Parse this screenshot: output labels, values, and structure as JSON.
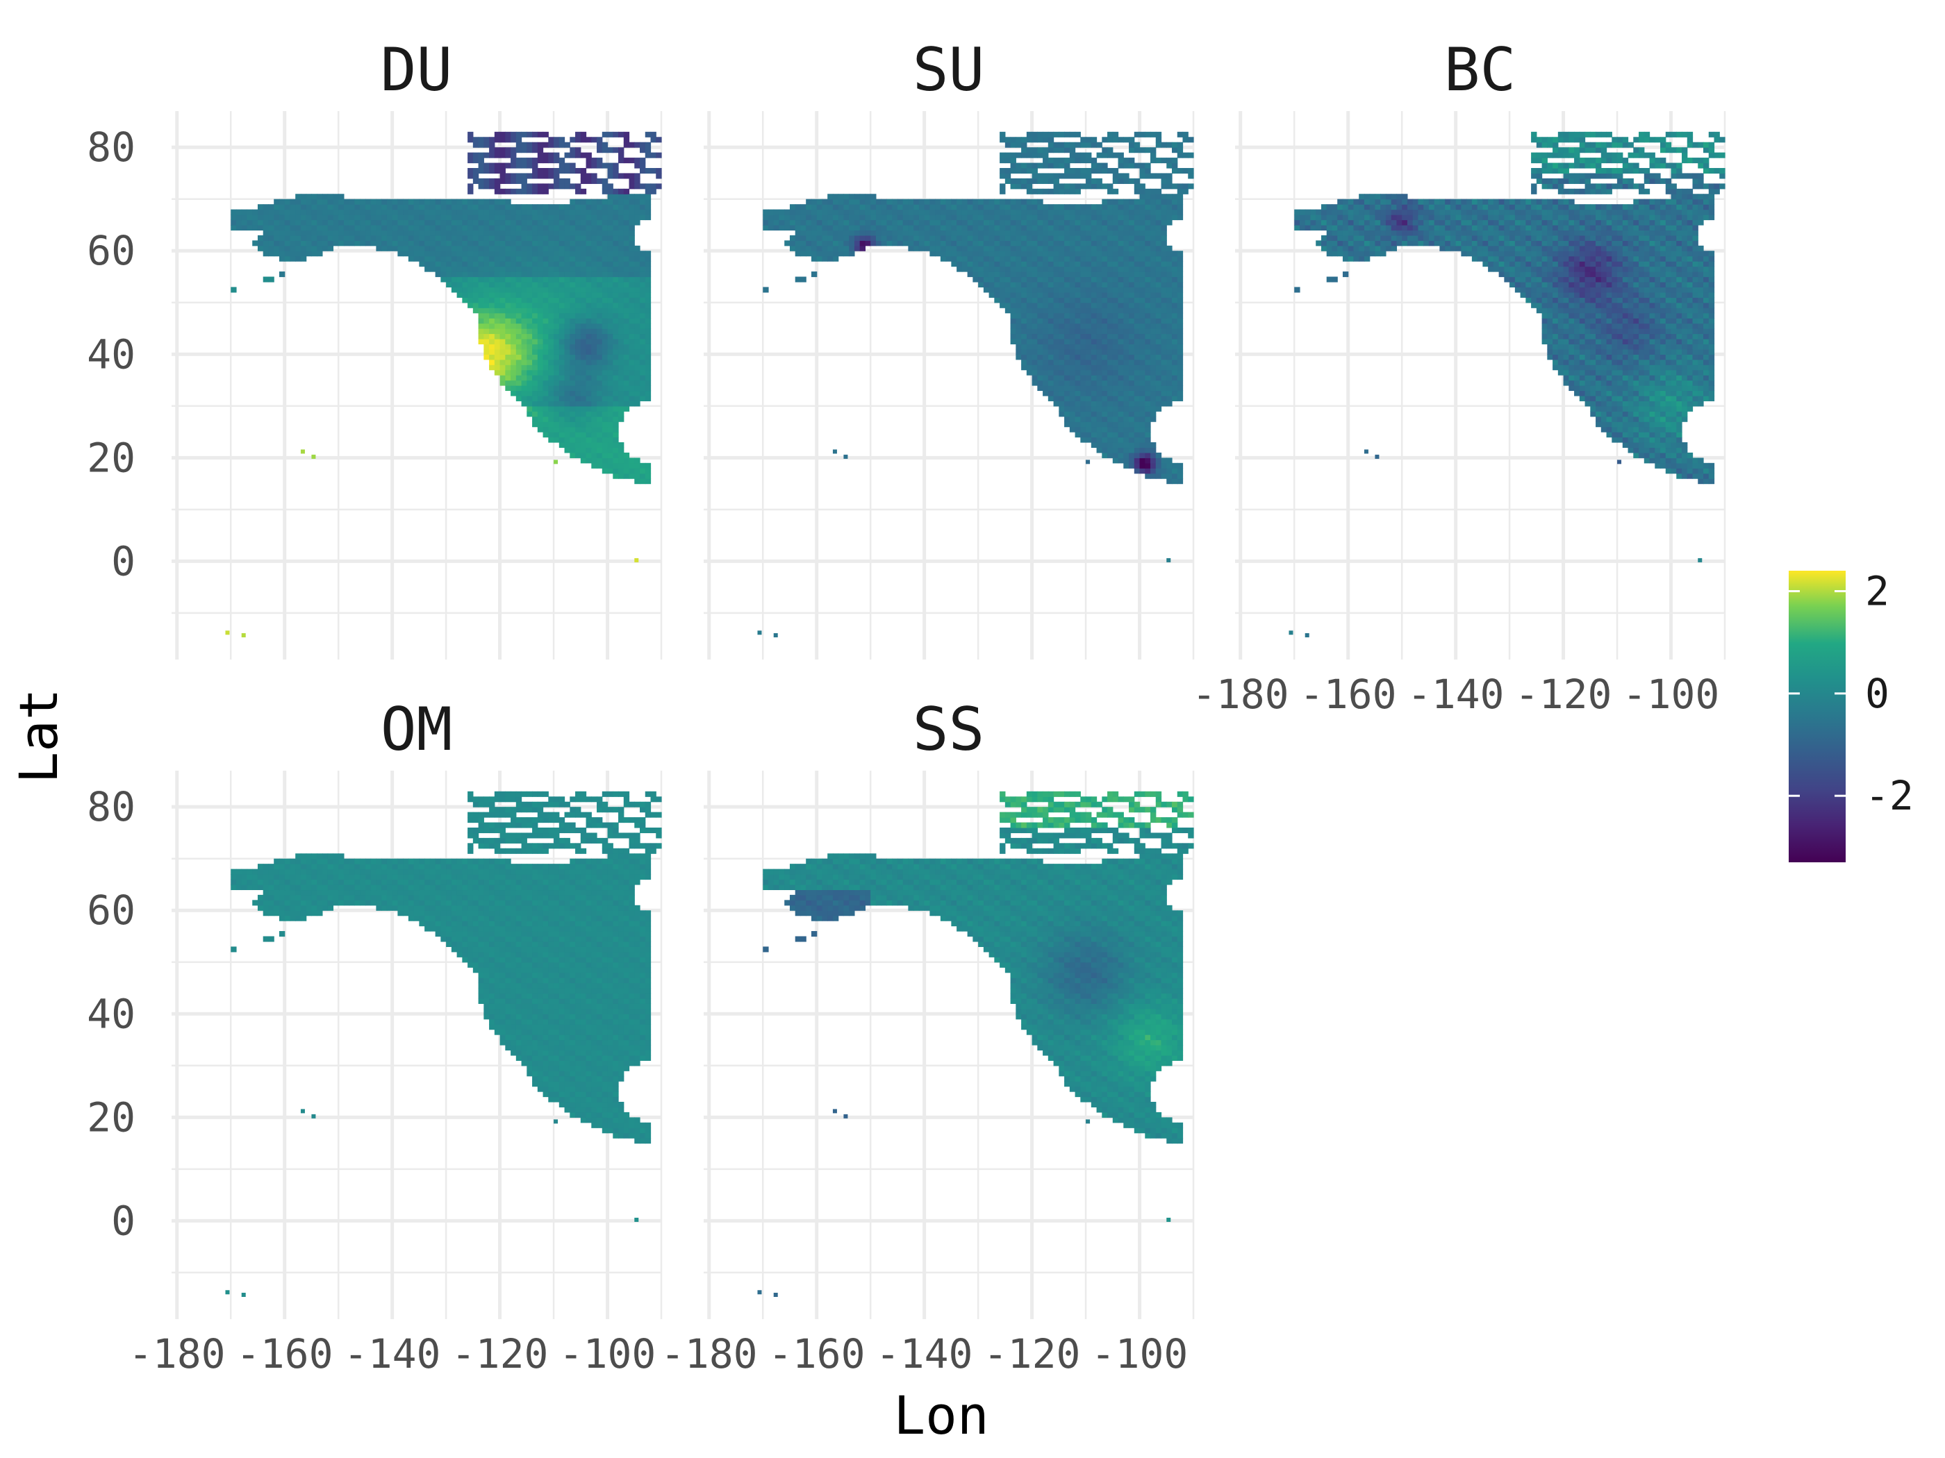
{
  "chart_data": {
    "type": "heatmap",
    "facets": [
      {
        "name": "DU",
        "pattern": "du"
      },
      {
        "name": "SU",
        "pattern": "su"
      },
      {
        "name": "BC",
        "pattern": "bc"
      },
      {
        "name": "OM",
        "pattern": "om"
      },
      {
        "name": "SS",
        "pattern": "ss"
      }
    ],
    "xlabel": "Lon",
    "ylabel": "Lat",
    "x_ticks": [
      -180,
      -160,
      -140,
      -120,
      -100
    ],
    "x_tick_labels": [
      "-180",
      "-160",
      "-140",
      "-120",
      "-100"
    ],
    "y_ticks": [
      80,
      60,
      40,
      20,
      0
    ],
    "y_tick_labels": [
      "80",
      "60",
      "40",
      "20",
      "0"
    ],
    "xlim": [
      -181,
      -90
    ],
    "ylim": [
      -19,
      87
    ],
    "legend": {
      "placement": "right",
      "min": -3.3,
      "max": 2.4,
      "breaks": [
        2,
        0,
        -2
      ],
      "break_labels": [
        "2",
        "0",
        "-2"
      ],
      "palette": "viridis"
    },
    "colors": [
      "#440154",
      "#3b528b",
      "#21908c",
      "#5dc863",
      "#fde725"
    ],
    "grid": true
  }
}
